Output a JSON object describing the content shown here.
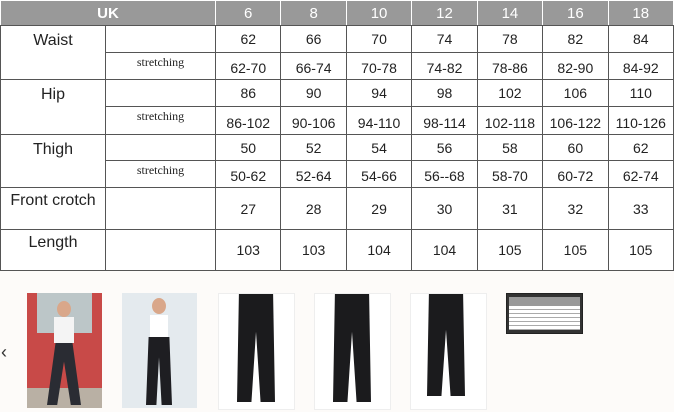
{
  "table": {
    "header": {
      "label": "UK",
      "sizes": [
        "6",
        "8",
        "10",
        "12",
        "14",
        "16",
        "18"
      ]
    },
    "stretch_label": "stretching",
    "rows": [
      {
        "label": "Waist",
        "values": [
          "62",
          "66",
          "70",
          "74",
          "78",
          "82",
          "84"
        ],
        "stretch": [
          "62-70",
          "66-74",
          "70-78",
          "74-82",
          "78-86",
          "82-90",
          "84-92"
        ]
      },
      {
        "label": "Hip",
        "values": [
          "86",
          "90",
          "94",
          "98",
          "102",
          "106",
          "110"
        ],
        "stretch": [
          "86-102",
          "90-106",
          "94-110",
          "98-114",
          "102-118",
          "106-122",
          "110-126"
        ]
      },
      {
        "label": "Thigh",
        "values": [
          "50",
          "52",
          "54",
          "56",
          "58",
          "60",
          "62"
        ],
        "stretch": [
          "50-62",
          "52-64",
          "54-66",
          "56--68",
          "58-70",
          "60-72",
          "62-74"
        ]
      },
      {
        "label": "Front crotch",
        "values": [
          "27",
          "28",
          "29",
          "30",
          "31",
          "32",
          "33"
        ]
      },
      {
        "label": "Length",
        "values": [
          "103",
          "103",
          "104",
          "104",
          "105",
          "105",
          "105"
        ]
      }
    ]
  },
  "gallery": {
    "prev_icon": "chevron-left-icon",
    "thumbnails": [
      "model-red-background",
      "model-white-background",
      "pants-front",
      "pants-back",
      "pants-side",
      "size-chart"
    ]
  }
}
